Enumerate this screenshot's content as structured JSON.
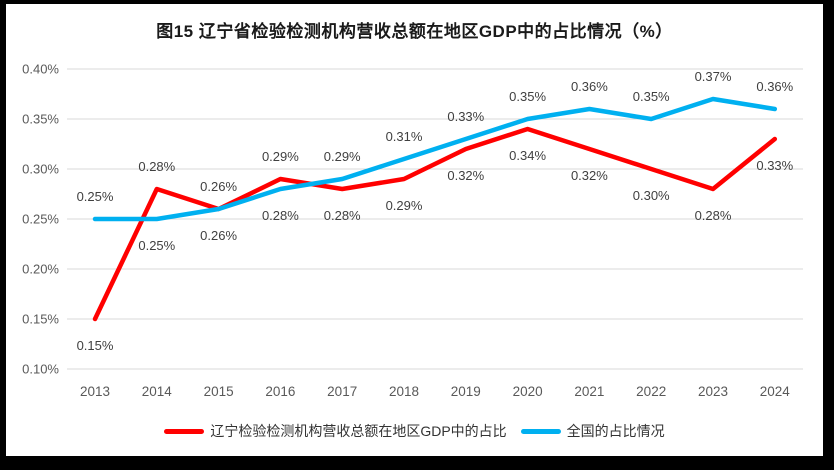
{
  "title": "图15 辽宁省检验检测机构营收总额在地区GDP中的占比情况（%）",
  "colors": {
    "liaoning_line": "#FF0000",
    "national_line": "#00B0F0",
    "gridline": "#D9D9D9",
    "axis_text": "#595959",
    "data_label_text": "#404040",
    "frame_border": "#000000",
    "background": "#FFFFFF"
  },
  "chart_data": {
    "type": "line",
    "title": "图15 辽宁省检验检测机构营收总额在地区GDP中的占比情况（%）",
    "categories": [
      "2013",
      "2014",
      "2015",
      "2016",
      "2017",
      "2018",
      "2019",
      "2020",
      "2021",
      "2022",
      "2023",
      "2024"
    ],
    "series": [
      {
        "name": "辽宁检验检测机构营收总额在地区GDP中的占比",
        "color": "#FF0000",
        "values": [
          0.15,
          0.28,
          0.26,
          0.29,
          0.28,
          0.29,
          0.32,
          0.34,
          0.32,
          0.3,
          0.28,
          0.33
        ],
        "labels": [
          "0.15%",
          "0.28%",
          "0.26%",
          "0.29%",
          "0.28%",
          "0.29%",
          "0.32%",
          "0.34%",
          "0.32%",
          "0.30%",
          "0.28%",
          "0.33%"
        ],
        "label_position": [
          "below",
          "above",
          "above",
          "above",
          "below",
          "below",
          "below",
          "below",
          "below",
          "below",
          "below",
          "below"
        ]
      },
      {
        "name": "全国的占比情况",
        "color": "#00B0F0",
        "values": [
          0.25,
          0.25,
          0.26,
          0.28,
          0.29,
          0.31,
          0.33,
          0.35,
          0.36,
          0.35,
          0.37,
          0.36
        ],
        "labels": [
          "0.25%",
          "0.25%",
          "0.26%",
          "0.28%",
          "0.29%",
          "0.31%",
          "0.33%",
          "0.35%",
          "0.36%",
          "0.35%",
          "0.37%",
          "0.36%"
        ],
        "label_position": [
          "above",
          "below",
          "below",
          "below",
          "above",
          "above",
          "above",
          "above",
          "above",
          "above",
          "above",
          "above"
        ]
      }
    ],
    "xlabel": "",
    "ylabel": "",
    "y_axis": {
      "min": 0.1,
      "max": 0.4,
      "step": 0.05,
      "tick_labels": [
        "0.10%",
        "0.15%",
        "0.20%",
        "0.25%",
        "0.30%",
        "0.35%",
        "0.40%"
      ]
    },
    "grid": true,
    "legend_position": "bottom"
  }
}
